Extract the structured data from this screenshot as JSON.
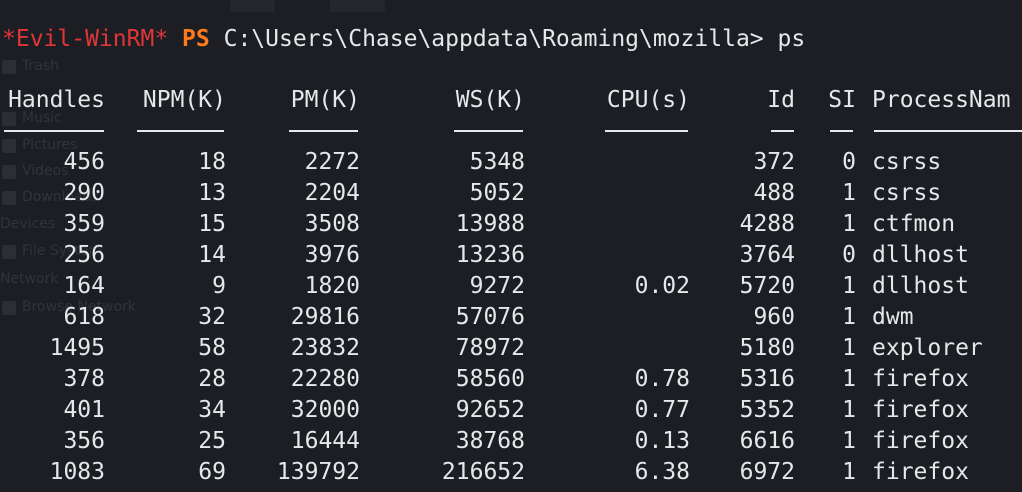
{
  "prompt": {
    "shell": "*Evil-WinRM*",
    "ps": "PS",
    "path": "C:\\Users\\Chase\\appdata\\Roaming\\mozilla>",
    "command": "ps"
  },
  "columns": {
    "handles": "Handles",
    "npm": "NPM(K)",
    "pm": "PM(K)",
    "ws": "WS(K)",
    "cpu": "CPU(s)",
    "id": "Id",
    "si": "SI",
    "name": "ProcessNam"
  },
  "rows": [
    {
      "handles": "456",
      "npm": "18",
      "pm": "2272",
      "ws": "5348",
      "cpu": "",
      "id": "372",
      "si": "0",
      "name": "csrss"
    },
    {
      "handles": "290",
      "npm": "13",
      "pm": "2204",
      "ws": "5052",
      "cpu": "",
      "id": "488",
      "si": "1",
      "name": "csrss"
    },
    {
      "handles": "359",
      "npm": "15",
      "pm": "3508",
      "ws": "13988",
      "cpu": "",
      "id": "4288",
      "si": "1",
      "name": "ctfmon"
    },
    {
      "handles": "256",
      "npm": "14",
      "pm": "3976",
      "ws": "13236",
      "cpu": "",
      "id": "3764",
      "si": "0",
      "name": "dllhost"
    },
    {
      "handles": "164",
      "npm": "9",
      "pm": "1820",
      "ws": "9272",
      "cpu": "0.02",
      "id": "5720",
      "si": "1",
      "name": "dllhost"
    },
    {
      "handles": "618",
      "npm": "32",
      "pm": "29816",
      "ws": "57076",
      "cpu": "",
      "id": "960",
      "si": "1",
      "name": "dwm"
    },
    {
      "handles": "1495",
      "npm": "58",
      "pm": "23832",
      "ws": "78972",
      "cpu": "",
      "id": "5180",
      "si": "1",
      "name": "explorer"
    },
    {
      "handles": "378",
      "npm": "28",
      "pm": "22280",
      "ws": "58560",
      "cpu": "0.78",
      "id": "5316",
      "si": "1",
      "name": "firefox"
    },
    {
      "handles": "401",
      "npm": "34",
      "pm": "32000",
      "ws": "92652",
      "cpu": "0.77",
      "id": "5352",
      "si": "1",
      "name": "firefox"
    },
    {
      "handles": "356",
      "npm": "25",
      "pm": "16444",
      "ws": "38768",
      "cpu": "0.13",
      "id": "6616",
      "si": "1",
      "name": "firefox"
    },
    {
      "handles": "1083",
      "npm": "69",
      "pm": "139792",
      "ws": "216652",
      "cpu": "6.38",
      "id": "6972",
      "si": "1",
      "name": "firefox"
    }
  ],
  "background_ghost": {
    "items": [
      "Trash",
      "Music",
      "Pictures",
      "Videos",
      "Downloads",
      "File System",
      "Browse Network"
    ],
    "sections": [
      "Devices",
      "Network"
    ]
  },
  "colors": {
    "background": "#1c1e23",
    "text": "#e6e7ea",
    "evil_winrm": "#e0363a",
    "ps": "#ff7a1a"
  }
}
